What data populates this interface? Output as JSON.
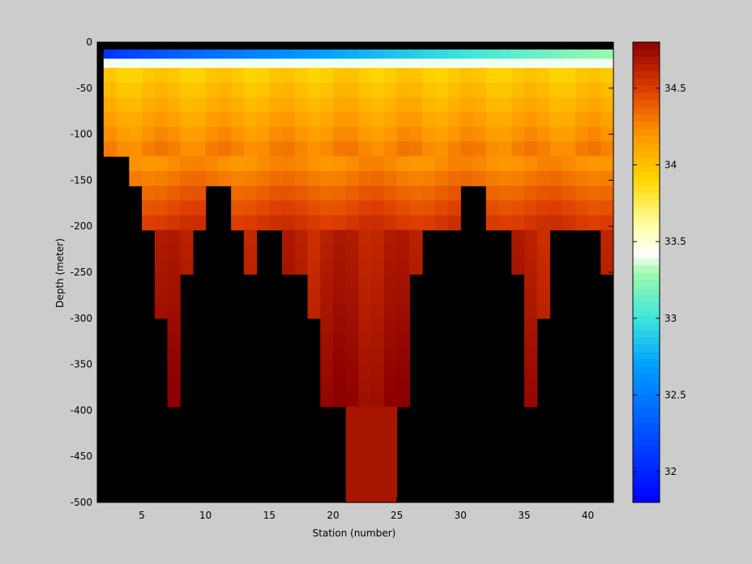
{
  "chart_data": {
    "type": "heatmap",
    "title": "",
    "xlabel": "Station (number)",
    "ylabel": "Depth (meter)",
    "xlim": [
      1.5,
      42
    ],
    "ylim": [
      -500,
      0
    ],
    "xticks": [
      5,
      10,
      15,
      20,
      25,
      30,
      35,
      40
    ],
    "yticks": [
      0,
      -50,
      -100,
      -150,
      -200,
      -250,
      -300,
      -350,
      -400,
      -450,
      -500
    ],
    "colorbar": {
      "range": [
        31.8,
        34.8
      ],
      "ticks": [
        32,
        32.5,
        33,
        33.5,
        34,
        34.5
      ],
      "colormap": "jet-like (blue - cyan - white - yellow - orange - dark red)"
    },
    "no_data_color": "#000000",
    "layers": [
      {
        "depth_top": -8,
        "depth_bottom": -18,
        "value_range": [
          32.1,
          33.3
        ],
        "note": "surface low salinity, freshest in west"
      },
      {
        "depth_top": -18,
        "depth_bottom": -28,
        "value": 33.4
      },
      {
        "depth_top": -28,
        "depth_bottom": -125,
        "value_range": [
          33.8,
          34.3
        ]
      },
      {
        "depth_top": -125,
        "depth_bottom": -200,
        "value_range": [
          34.2,
          34.55
        ]
      },
      {
        "depth_top": -200,
        "depth_bottom": -400,
        "value_range": [
          34.55,
          34.8
        ]
      },
      {
        "depth_top": -400,
        "depth_bottom": -500,
        "value": 34.7,
        "stations": [
          21,
          25
        ]
      }
    ],
    "bottom_depth_by_station": [
      {
        "station": 2,
        "depth": -125
      },
      {
        "station": 4,
        "depth": -150
      },
      {
        "station": 5,
        "depth": -200
      },
      {
        "station": 6,
        "depth": -300
      },
      {
        "station": 7,
        "depth": -400
      },
      {
        "station": 8,
        "depth": -250
      },
      {
        "station": 9,
        "depth": -200
      },
      {
        "station": 10,
        "depth": -150
      },
      {
        "station": 12,
        "depth": -200
      },
      {
        "station": 13,
        "depth": -250
      },
      {
        "station": 14,
        "depth": -200
      },
      {
        "station": 16,
        "depth": -250
      },
      {
        "station": 18,
        "depth": -300
      },
      {
        "station": 19,
        "depth": -400
      },
      {
        "station": 21,
        "depth": -500
      },
      {
        "station": 25,
        "depth": -400
      },
      {
        "station": 26,
        "depth": -250
      },
      {
        "station": 27,
        "depth": -200
      },
      {
        "station": 30,
        "depth": -150
      },
      {
        "station": 32,
        "depth": -200
      },
      {
        "station": 34,
        "depth": -250
      },
      {
        "station": 35,
        "depth": -400
      },
      {
        "station": 36,
        "depth": -300
      },
      {
        "station": 37,
        "depth": -200
      },
      {
        "station": 41,
        "depth": -250
      },
      {
        "station": 42,
        "depth": -400
      }
    ]
  }
}
